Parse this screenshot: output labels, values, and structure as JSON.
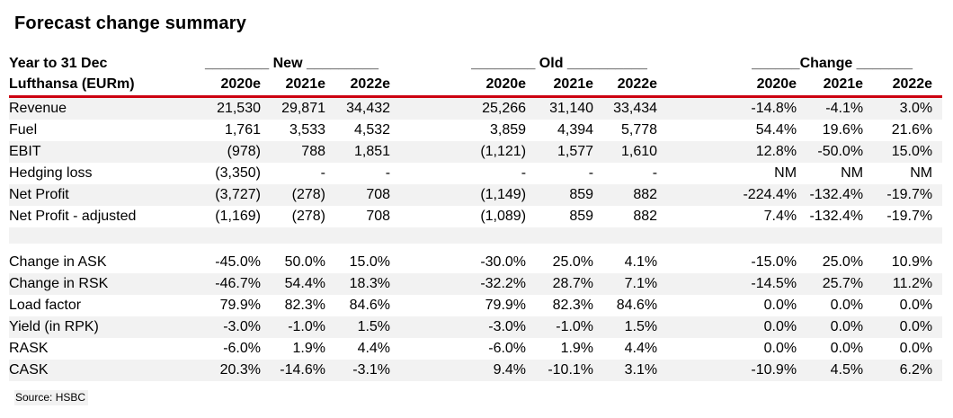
{
  "title": "Forecast change summary",
  "colors": {
    "rule_red": "#cc0011",
    "row_shade": "#f2f2f2"
  },
  "source": "Source: HSBC",
  "table": {
    "corner": {
      "line1": "Year to 31 Dec",
      "line2": "Lufthansa (EURm)"
    },
    "groups": {
      "new": {
        "heading": "________ New _________",
        "years": [
          "2020e",
          "2021e",
          "2022e"
        ]
      },
      "old": {
        "heading": "________ Old __________",
        "years": [
          "2020e",
          "2021e",
          "2022e"
        ]
      },
      "change": {
        "heading": "______Change _______",
        "years": [
          "2020e",
          "2021e",
          "2022e"
        ]
      }
    },
    "rows": [
      {
        "label": "Revenue",
        "new": [
          "21,530",
          "29,871",
          "34,432"
        ],
        "old": [
          "25,266",
          "31,140",
          "33,434"
        ],
        "change": [
          "-14.8%",
          "-4.1%",
          "3.0%"
        ]
      },
      {
        "label": "Fuel",
        "new": [
          "1,761",
          "3,533",
          "4,532"
        ],
        "old": [
          "3,859",
          "4,394",
          "5,778"
        ],
        "change": [
          "54.4%",
          "19.6%",
          "21.6%"
        ]
      },
      {
        "label": "EBIT",
        "new": [
          "(978)",
          "788",
          "1,851"
        ],
        "old": [
          "(1,121)",
          "1,577",
          "1,610"
        ],
        "change": [
          "12.8%",
          "-50.0%",
          "15.0%"
        ]
      },
      {
        "label": "Hedging loss",
        "new": [
          "(3,350)",
          "-",
          "-"
        ],
        "old": [
          "-",
          "-",
          "-"
        ],
        "change": [
          "NM",
          "NM",
          "NM"
        ]
      },
      {
        "label": "Net Profit",
        "new": [
          "(3,727)",
          "(278)",
          "708"
        ],
        "old": [
          "(1,149)",
          "859",
          "882"
        ],
        "change": [
          "-224.4%",
          "-132.4%",
          "-19.7%"
        ]
      },
      {
        "label": "Net Profit - adjusted",
        "new": [
          "(1,169)",
          "(278)",
          "708"
        ],
        "old": [
          "(1,089)",
          "859",
          "882"
        ],
        "change": [
          "7.4%",
          "-132.4%",
          "-19.7%"
        ]
      },
      {
        "label": "Change in ASK",
        "new": [
          "-45.0%",
          "50.0%",
          "15.0%"
        ],
        "old": [
          "-30.0%",
          "25.0%",
          "4.1%"
        ],
        "change": [
          "-15.0%",
          "25.0%",
          "10.9%"
        ]
      },
      {
        "label": "Change in RSK",
        "new": [
          "-46.7%",
          "54.4%",
          "18.3%"
        ],
        "old": [
          "-32.2%",
          "28.7%",
          "7.1%"
        ],
        "change": [
          "-14.5%",
          "25.7%",
          "11.2%"
        ]
      },
      {
        "label": "Load factor",
        "new": [
          "79.9%",
          "82.3%",
          "84.6%"
        ],
        "old": [
          "79.9%",
          "82.3%",
          "84.6%"
        ],
        "change": [
          "0.0%",
          "0.0%",
          "0.0%"
        ]
      },
      {
        "label": "Yield (in RPK)",
        "new": [
          "-3.0%",
          "-1.0%",
          "1.5%"
        ],
        "old": [
          "-3.0%",
          "-1.0%",
          "1.5%"
        ],
        "change": [
          "0.0%",
          "0.0%",
          "0.0%"
        ]
      },
      {
        "label": "RASK",
        "new": [
          "-6.0%",
          "1.9%",
          "4.4%"
        ],
        "old": [
          "-6.0%",
          "1.9%",
          "4.4%"
        ],
        "change": [
          "0.0%",
          "0.0%",
          "0.0%"
        ]
      },
      {
        "label": "CASK",
        "new": [
          "20.3%",
          "-14.6%",
          "-3.1%"
        ],
        "old": [
          "9.4%",
          "-10.1%",
          "3.1%"
        ],
        "change": [
          "-10.9%",
          "4.5%",
          "6.2%"
        ]
      }
    ]
  }
}
